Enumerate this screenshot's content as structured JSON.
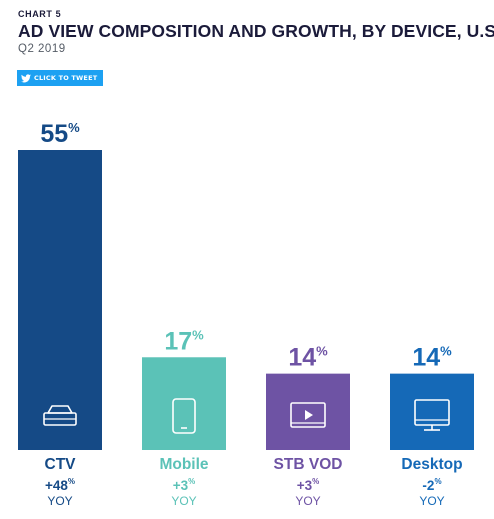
{
  "header": {
    "chart_label": "CHART 5",
    "title": "AD VIEW COMPOSITION AND GROWTH, BY DEVICE, U.S.",
    "subtitle": "Q2 2019"
  },
  "tweet_button": {
    "label": "CLICK TO TWEET",
    "icon": "twitter-bird-icon",
    "color": "#1da1f2"
  },
  "chart_data": {
    "type": "bar",
    "title": "AD VIEW COMPOSITION AND GROWTH, BY DEVICE, U.S.",
    "subtitle": "Q2 2019",
    "categories": [
      "CTV",
      "Mobile",
      "STB VOD",
      "Desktop"
    ],
    "values": [
      55,
      17,
      14,
      14
    ],
    "value_labels": [
      "55",
      "17",
      "14",
      "14"
    ],
    "value_unit": "%",
    "growth": [
      "+48",
      "+3",
      "+3",
      "-2"
    ],
    "growth_unit": "%",
    "growth_suffix": "YOY",
    "ylim": [
      0,
      55
    ],
    "grid": false,
    "colors": [
      "#154a86",
      "#5bc2b7",
      "#6e53a4",
      "#1569b7"
    ],
    "icons": [
      "set-top-box-icon",
      "tablet-icon",
      "video-player-icon",
      "desktop-monitor-icon"
    ]
  }
}
